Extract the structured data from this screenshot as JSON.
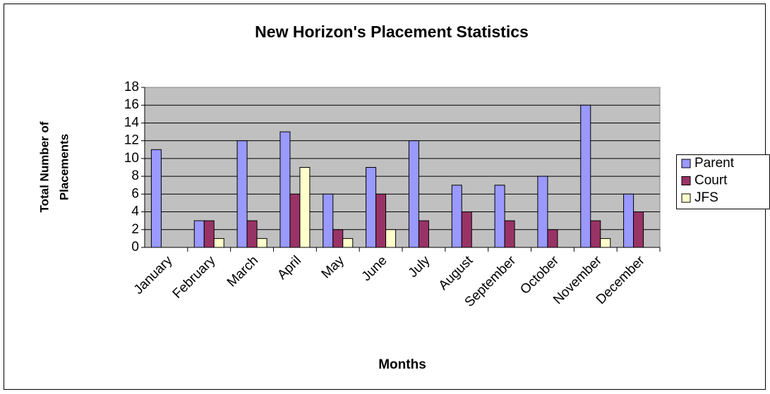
{
  "chart_data": {
    "type": "bar",
    "title": "New Horizon's Placement Statistics",
    "x_label": "Months",
    "y_label": [
      "Total Number of",
      "Placements"
    ],
    "categories": [
      "January",
      "February",
      "March",
      "April",
      "May",
      "June",
      "July",
      "August",
      "September",
      "October",
      "November",
      "December"
    ],
    "series": [
      {
        "name": "Parent",
        "color": "#9999ff",
        "values": [
          11,
          3,
          12,
          13,
          6,
          9,
          12,
          7,
          7,
          8,
          16,
          6
        ]
      },
      {
        "name": "Court",
        "color": "#993366",
        "values": [
          0,
          3,
          3,
          6,
          2,
          6,
          3,
          4,
          3,
          2,
          3,
          4
        ]
      },
      {
        "name": "JFS",
        "color": "#ffffcc",
        "values": [
          0,
          1,
          1,
          9,
          1,
          2,
          0,
          0,
          0,
          0,
          1,
          0
        ]
      }
    ],
    "ylim": [
      0,
      18
    ],
    "yticks": [
      0,
      2,
      4,
      6,
      8,
      10,
      12,
      14,
      16,
      18
    ],
    "grid": true,
    "legend": "right"
  }
}
